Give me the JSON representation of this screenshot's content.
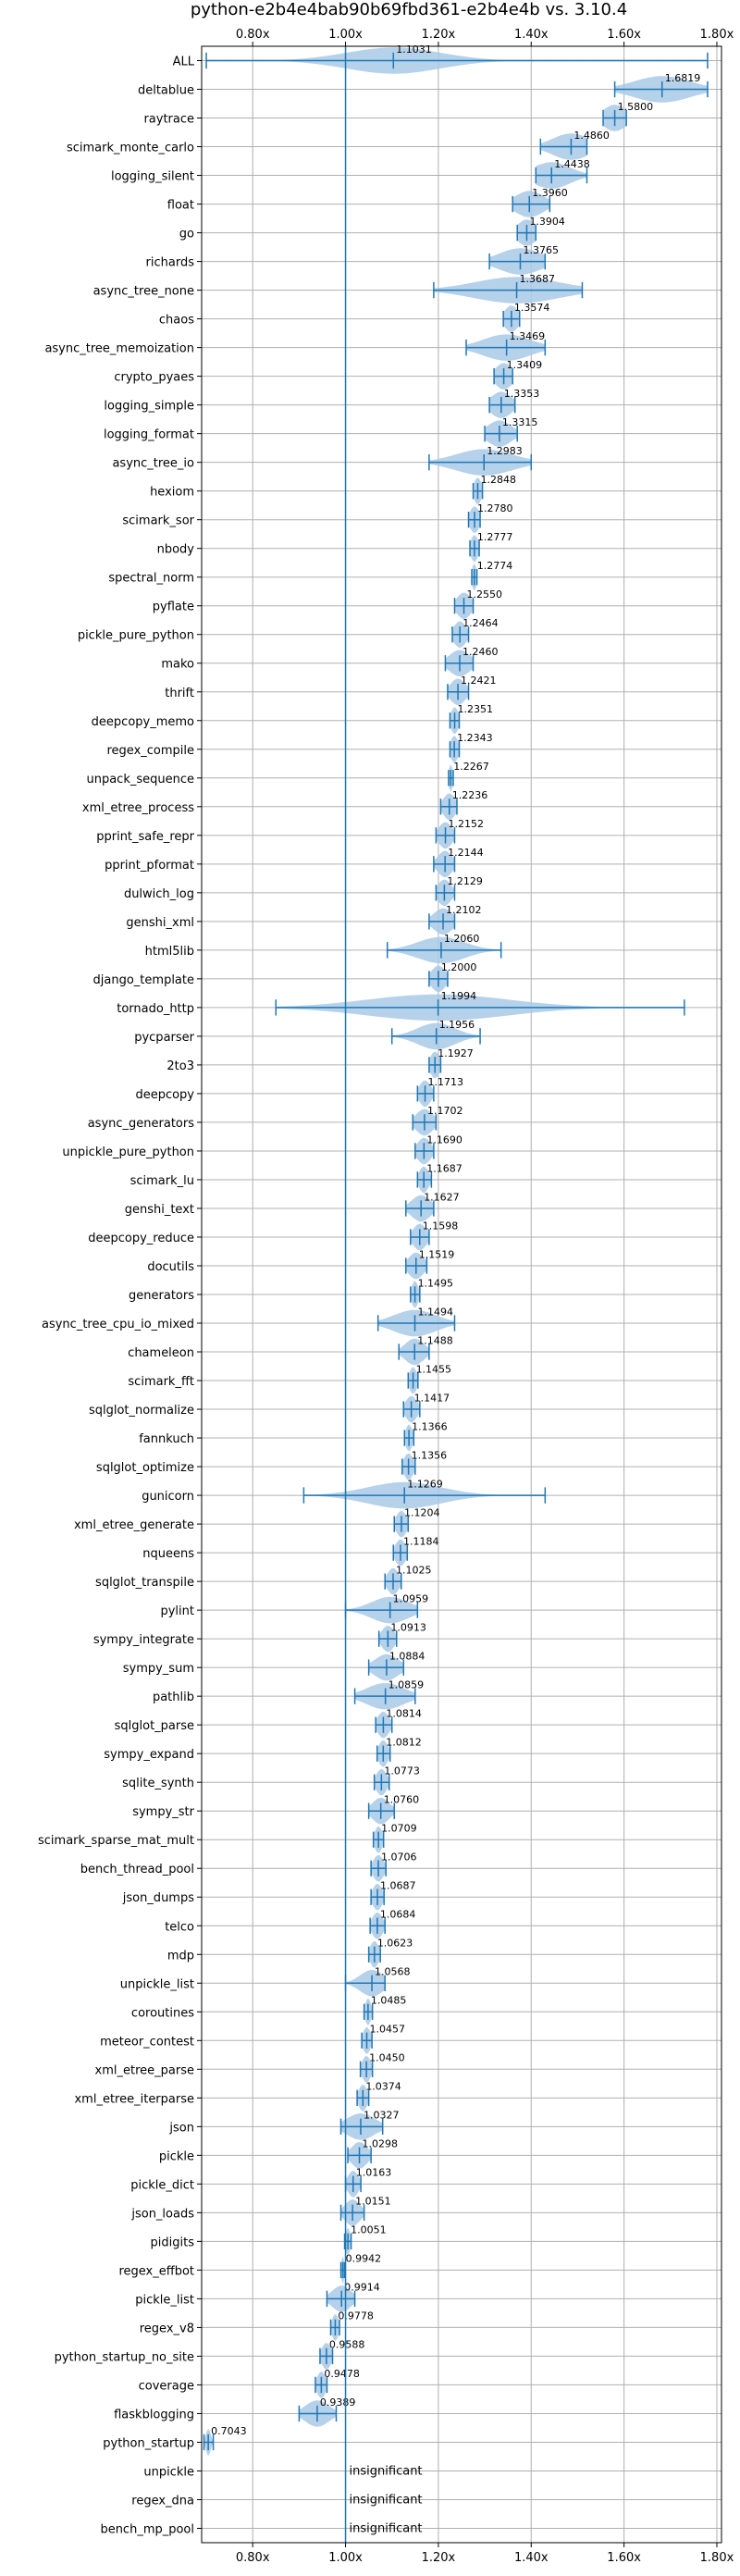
{
  "chart_data": {
    "type": "violin",
    "title": "python-e2b4e4bab90b69fbd361-e2b4e4b vs. 3.10.4",
    "xlabel": "",
    "ylabel": "",
    "xlim": [
      0.69,
      1.81
    ],
    "x_ticks": [
      {
        "value": 0.8,
        "label": "0.80x"
      },
      {
        "value": 1.0,
        "label": "1.00x"
      },
      {
        "value": 1.2,
        "label": "1.20x"
      },
      {
        "value": 1.4,
        "label": "1.40x"
      },
      {
        "value": 1.6,
        "label": "1.60x"
      },
      {
        "value": 1.8,
        "label": "1.80x"
      }
    ],
    "reference_line": 1.0,
    "grid": true,
    "colors": {
      "violin_fill": "#a9c9e6",
      "whisker": "#1f77b4",
      "grid": "#b0b0b0",
      "reference": "#1f77b4"
    },
    "benchmarks": [
      {
        "name": "ALL",
        "mean": 1.1031,
        "label": "1.1031",
        "min": 0.7,
        "max": 1.78,
        "spread": 0.1
      },
      {
        "name": "deltablue",
        "mean": 1.6819,
        "label": "1.6819",
        "min": 1.58,
        "max": 1.78,
        "spread": 0.06
      },
      {
        "name": "raytrace",
        "mean": 1.58,
        "label": "1.5800",
        "min": 1.555,
        "max": 1.605,
        "spread": 0.025
      },
      {
        "name": "scimark_monte_carlo",
        "mean": 1.486,
        "label": "1.4860",
        "min": 1.42,
        "max": 1.52,
        "spread": 0.04
      },
      {
        "name": "logging_silent",
        "mean": 1.4438,
        "label": "1.4438",
        "min": 1.41,
        "max": 1.52,
        "spread": 0.04
      },
      {
        "name": "float",
        "mean": 1.396,
        "label": "1.3960",
        "min": 1.36,
        "max": 1.44,
        "spread": 0.03
      },
      {
        "name": "go",
        "mean": 1.3904,
        "label": "1.3904",
        "min": 1.37,
        "max": 1.41,
        "spread": 0.02
      },
      {
        "name": "richards",
        "mean": 1.3765,
        "label": "1.3765",
        "min": 1.31,
        "max": 1.43,
        "spread": 0.045
      },
      {
        "name": "async_tree_none",
        "mean": 1.3687,
        "label": "1.3687",
        "min": 1.19,
        "max": 1.51,
        "spread": 0.09
      },
      {
        "name": "chaos",
        "mean": 1.3574,
        "label": "1.3574",
        "min": 1.34,
        "max": 1.375,
        "spread": 0.015
      },
      {
        "name": "async_tree_memoization",
        "mean": 1.3469,
        "label": "1.3469",
        "min": 1.26,
        "max": 1.43,
        "spread": 0.05
      },
      {
        "name": "crypto_pyaes",
        "mean": 1.3409,
        "label": "1.3409",
        "min": 1.32,
        "max": 1.36,
        "spread": 0.018
      },
      {
        "name": "logging_simple",
        "mean": 1.3353,
        "label": "1.3353",
        "min": 1.31,
        "max": 1.365,
        "spread": 0.022
      },
      {
        "name": "logging_format",
        "mean": 1.3315,
        "label": "1.3315",
        "min": 1.3,
        "max": 1.37,
        "spread": 0.025
      },
      {
        "name": "async_tree_io",
        "mean": 1.2983,
        "label": "1.2983",
        "min": 1.18,
        "max": 1.4,
        "spread": 0.06
      },
      {
        "name": "hexiom",
        "mean": 1.2848,
        "label": "1.2848",
        "min": 1.275,
        "max": 1.295,
        "spread": 0.008
      },
      {
        "name": "scimark_sor",
        "mean": 1.278,
        "label": "1.2780",
        "min": 1.265,
        "max": 1.29,
        "spread": 0.01
      },
      {
        "name": "nbody",
        "mean": 1.2777,
        "label": "1.2777",
        "min": 1.268,
        "max": 1.288,
        "spread": 0.008
      },
      {
        "name": "spectral_norm",
        "mean": 1.2774,
        "label": "1.2774",
        "min": 1.272,
        "max": 1.283,
        "spread": 0.005
      },
      {
        "name": "pyflate",
        "mean": 1.255,
        "label": "1.2550",
        "min": 1.235,
        "max": 1.275,
        "spread": 0.015
      },
      {
        "name": "pickle_pure_python",
        "mean": 1.2464,
        "label": "1.2464",
        "min": 1.23,
        "max": 1.265,
        "spread": 0.013
      },
      {
        "name": "mako",
        "mean": 1.246,
        "label": "1.2460",
        "min": 1.215,
        "max": 1.275,
        "spread": 0.022
      },
      {
        "name": "thrift",
        "mean": 1.2421,
        "label": "1.2421",
        "min": 1.22,
        "max": 1.265,
        "spread": 0.016
      },
      {
        "name": "deepcopy_memo",
        "mean": 1.2351,
        "label": "1.2351",
        "min": 1.225,
        "max": 1.245,
        "spread": 0.008
      },
      {
        "name": "regex_compile",
        "mean": 1.2343,
        "label": "1.2343",
        "min": 1.225,
        "max": 1.245,
        "spread": 0.008
      },
      {
        "name": "unpack_sequence",
        "mean": 1.2267,
        "label": "1.2267",
        "min": 1.222,
        "max": 1.232,
        "spread": 0.004
      },
      {
        "name": "xml_etree_process",
        "mean": 1.2236,
        "label": "1.2236",
        "min": 1.205,
        "max": 1.24,
        "spread": 0.013
      },
      {
        "name": "pprint_safe_repr",
        "mean": 1.2152,
        "label": "1.2152",
        "min": 1.195,
        "max": 1.235,
        "spread": 0.014
      },
      {
        "name": "pprint_pformat",
        "mean": 1.2144,
        "label": "1.2144",
        "min": 1.19,
        "max": 1.235,
        "spread": 0.015
      },
      {
        "name": "dulwich_log",
        "mean": 1.2129,
        "label": "1.2129",
        "min": 1.195,
        "max": 1.235,
        "spread": 0.014
      },
      {
        "name": "genshi_xml",
        "mean": 1.2102,
        "label": "1.2102",
        "min": 1.18,
        "max": 1.235,
        "spread": 0.02
      },
      {
        "name": "html5lib",
        "mean": 1.206,
        "label": "1.2060",
        "min": 1.09,
        "max": 1.335,
        "spread": 0.05
      },
      {
        "name": "django_template",
        "mean": 1.2,
        "label": "1.2000",
        "min": 1.18,
        "max": 1.22,
        "spread": 0.015
      },
      {
        "name": "tornado_http",
        "mean": 1.1994,
        "label": "1.1994",
        "min": 0.85,
        "max": 1.73,
        "spread": 0.15
      },
      {
        "name": "pycparser",
        "mean": 1.1956,
        "label": "1.1956",
        "min": 1.1,
        "max": 1.29,
        "spread": 0.04
      },
      {
        "name": "2to3",
        "mean": 1.1927,
        "label": "1.1927",
        "min": 1.18,
        "max": 1.205,
        "spread": 0.01
      },
      {
        "name": "deepcopy",
        "mean": 1.1713,
        "label": "1.1713",
        "min": 1.155,
        "max": 1.19,
        "spread": 0.012
      },
      {
        "name": "async_generators",
        "mean": 1.1702,
        "label": "1.1702",
        "min": 1.145,
        "max": 1.195,
        "spread": 0.018
      },
      {
        "name": "unpickle_pure_python",
        "mean": 1.169,
        "label": "1.1690",
        "min": 1.15,
        "max": 1.19,
        "spread": 0.014
      },
      {
        "name": "scimark_lu",
        "mean": 1.1687,
        "label": "1.1687",
        "min": 1.155,
        "max": 1.185,
        "spread": 0.01
      },
      {
        "name": "genshi_text",
        "mean": 1.1627,
        "label": "1.1627",
        "min": 1.13,
        "max": 1.19,
        "spread": 0.02
      },
      {
        "name": "deepcopy_reduce",
        "mean": 1.1598,
        "label": "1.1598",
        "min": 1.14,
        "max": 1.18,
        "spread": 0.014
      },
      {
        "name": "docutils",
        "mean": 1.1519,
        "label": "1.1519",
        "min": 1.13,
        "max": 1.175,
        "spread": 0.016
      },
      {
        "name": "generators",
        "mean": 1.1495,
        "label": "1.1495",
        "min": 1.14,
        "max": 1.16,
        "spread": 0.007
      },
      {
        "name": "async_tree_cpu_io_mixed",
        "mean": 1.1494,
        "label": "1.1494",
        "min": 1.07,
        "max": 1.235,
        "spread": 0.045
      },
      {
        "name": "chameleon",
        "mean": 1.1488,
        "label": "1.1488",
        "min": 1.115,
        "max": 1.18,
        "spread": 0.02
      },
      {
        "name": "scimark_fft",
        "mean": 1.1455,
        "label": "1.1455",
        "min": 1.135,
        "max": 1.156,
        "spread": 0.008
      },
      {
        "name": "sqlglot_normalize",
        "mean": 1.1417,
        "label": "1.1417",
        "min": 1.125,
        "max": 1.16,
        "spread": 0.012
      },
      {
        "name": "fannkuch",
        "mean": 1.1366,
        "label": "1.1366",
        "min": 1.127,
        "max": 1.147,
        "spread": 0.007
      },
      {
        "name": "sqlglot_optimize",
        "mean": 1.1356,
        "label": "1.1356",
        "min": 1.122,
        "max": 1.15,
        "spread": 0.01
      },
      {
        "name": "gunicorn",
        "mean": 1.1269,
        "label": "1.1269",
        "min": 0.91,
        "max": 1.43,
        "spread": 0.08
      },
      {
        "name": "xml_etree_generate",
        "mean": 1.1204,
        "label": "1.1204",
        "min": 1.105,
        "max": 1.135,
        "spread": 0.011
      },
      {
        "name": "nqueens",
        "mean": 1.1184,
        "label": "1.1184",
        "min": 1.103,
        "max": 1.133,
        "spread": 0.011
      },
      {
        "name": "sqlglot_transpile",
        "mean": 1.1025,
        "label": "1.1025",
        "min": 1.085,
        "max": 1.12,
        "spread": 0.012
      },
      {
        "name": "pylint",
        "mean": 1.0959,
        "label": "1.0959",
        "min": 1.0,
        "max": 1.155,
        "spread": 0.04
      },
      {
        "name": "sympy_integrate",
        "mean": 1.0913,
        "label": "1.0913",
        "min": 1.072,
        "max": 1.11,
        "spread": 0.013
      },
      {
        "name": "sympy_sum",
        "mean": 1.0884,
        "label": "1.0884",
        "min": 1.05,
        "max": 1.125,
        "spread": 0.025
      },
      {
        "name": "pathlib",
        "mean": 1.0859,
        "label": "1.0859",
        "min": 1.02,
        "max": 1.15,
        "spread": 0.04
      },
      {
        "name": "sqlglot_parse",
        "mean": 1.0814,
        "label": "1.0814",
        "min": 1.065,
        "max": 1.1,
        "spread": 0.012
      },
      {
        "name": "sympy_expand",
        "mean": 1.0812,
        "label": "1.0812",
        "min": 1.068,
        "max": 1.096,
        "spread": 0.01
      },
      {
        "name": "sqlite_synth",
        "mean": 1.0773,
        "label": "1.0773",
        "min": 1.062,
        "max": 1.094,
        "spread": 0.011
      },
      {
        "name": "sympy_str",
        "mean": 1.076,
        "label": "1.0760",
        "min": 1.05,
        "max": 1.105,
        "spread": 0.018
      },
      {
        "name": "scimark_sparse_mat_mult",
        "mean": 1.0709,
        "label": "1.0709",
        "min": 1.06,
        "max": 1.082,
        "spread": 0.008
      },
      {
        "name": "bench_thread_pool",
        "mean": 1.0706,
        "label": "1.0706",
        "min": 1.055,
        "max": 1.087,
        "spread": 0.011
      },
      {
        "name": "json_dumps",
        "mean": 1.0687,
        "label": "1.0687",
        "min": 1.055,
        "max": 1.083,
        "spread": 0.01
      },
      {
        "name": "telco",
        "mean": 1.0684,
        "label": "1.0684",
        "min": 1.053,
        "max": 1.085,
        "spread": 0.011
      },
      {
        "name": "mdp",
        "mean": 1.0623,
        "label": "1.0623",
        "min": 1.05,
        "max": 1.075,
        "spread": 0.009
      },
      {
        "name": "unpickle_list",
        "mean": 1.0568,
        "label": "1.0568",
        "min": 1.0,
        "max": 1.085,
        "spread": 0.025
      },
      {
        "name": "coroutines",
        "mean": 1.0485,
        "label": "1.0485",
        "min": 1.04,
        "max": 1.058,
        "spread": 0.006
      },
      {
        "name": "meteor_contest",
        "mean": 1.0457,
        "label": "1.0457",
        "min": 1.035,
        "max": 1.057,
        "spread": 0.008
      },
      {
        "name": "xml_etree_parse",
        "mean": 1.045,
        "label": "1.0450",
        "min": 1.032,
        "max": 1.058,
        "spread": 0.009
      },
      {
        "name": "xml_etree_iterparse",
        "mean": 1.0374,
        "label": "1.0374",
        "min": 1.025,
        "max": 1.05,
        "spread": 0.009
      },
      {
        "name": "json",
        "mean": 1.0327,
        "label": "1.0327",
        "min": 0.99,
        "max": 1.08,
        "spread": 0.03
      },
      {
        "name": "pickle",
        "mean": 1.0298,
        "label": "1.0298",
        "min": 1.005,
        "max": 1.055,
        "spread": 0.017
      },
      {
        "name": "pickle_dict",
        "mean": 1.0163,
        "label": "1.0163",
        "min": 1.0,
        "max": 1.033,
        "spread": 0.011
      },
      {
        "name": "json_loads",
        "mean": 1.0151,
        "label": "1.0151",
        "min": 0.99,
        "max": 1.04,
        "spread": 0.016
      },
      {
        "name": "pidigits",
        "mean": 1.0051,
        "label": "1.0051",
        "min": 0.998,
        "max": 1.012,
        "spread": 0.005
      },
      {
        "name": "regex_effbot",
        "mean": 0.9942,
        "label": "0.9942",
        "min": 0.99,
        "max": 0.998,
        "spread": 0.003
      },
      {
        "name": "pickle_list",
        "mean": 0.9914,
        "label": "0.9914",
        "min": 0.96,
        "max": 1.02,
        "spread": 0.02
      },
      {
        "name": "regex_v8",
        "mean": 0.9778,
        "label": "0.9778",
        "min": 0.968,
        "max": 0.987,
        "spread": 0.007
      },
      {
        "name": "python_startup_no_site",
        "mean": 0.9588,
        "label": "0.9588",
        "min": 0.945,
        "max": 0.972,
        "spread": 0.01
      },
      {
        "name": "coverage",
        "mean": 0.9478,
        "label": "0.9478",
        "min": 0.935,
        "max": 0.96,
        "spread": 0.009
      },
      {
        "name": "flaskblogging",
        "mean": 0.9389,
        "label": "0.9389",
        "min": 0.9,
        "max": 0.98,
        "spread": 0.025
      },
      {
        "name": "python_startup",
        "mean": 0.7043,
        "label": "0.7043",
        "min": 0.695,
        "max": 0.715,
        "spread": 0.005
      },
      {
        "name": "unpickle",
        "insignificant": true,
        "label": "insignificant"
      },
      {
        "name": "regex_dna",
        "insignificant": true,
        "label": "insignificant"
      },
      {
        "name": "bench_mp_pool",
        "insignificant": true,
        "label": "insignificant"
      }
    ]
  }
}
